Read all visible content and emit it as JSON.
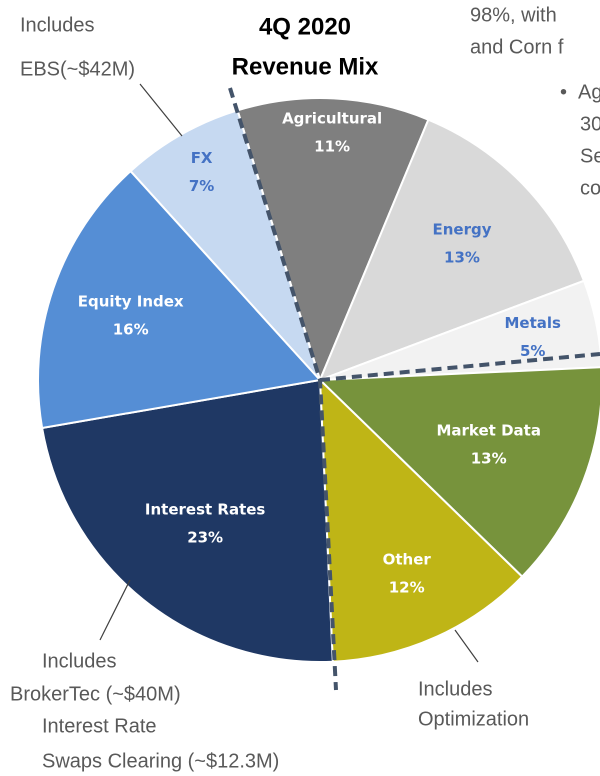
{
  "chart_data": {
    "type": "pie",
    "title": [
      "4Q 2020",
      "Revenue Mix"
    ],
    "categories": [
      "Agricultural",
      "Energy",
      "Metals",
      "Market Data",
      "Other",
      "Interest Rates",
      "Equity Index",
      "FX"
    ],
    "values": [
      11,
      13,
      5,
      13,
      12,
      23,
      16,
      7
    ],
    "value_labels": [
      "11%",
      "13%",
      "5%",
      "13%",
      "12%",
      "23%",
      "16%",
      "7%"
    ],
    "colors": [
      "#7f7f7f",
      "#d9d9d9",
      "#f2f2f2",
      "#77933c",
      "#bfb516",
      "#1f3864",
      "#558ed5",
      "#c6d9f1"
    ],
    "label_colors": [
      "#ffffff",
      "#4472c4",
      "#4472c4",
      "#ffffff",
      "#ffffff",
      "#ffffff",
      "#ffffff",
      "#4472c4"
    ],
    "annotations": [
      [
        "Includes",
        "EBS(~$42M)"
      ],
      [
        "Includes",
        "BrokerTec (~$40M)"
      ],
      [
        "Interest Rate",
        "Swaps Clearing (~$12.3M)"
      ],
      [
        "Includes",
        "Optimization"
      ]
    ],
    "body_text": [
      "98%, with",
      "and Corn f",
      "•",
      "Ag",
      "30",
      "Se",
      "co"
    ]
  }
}
